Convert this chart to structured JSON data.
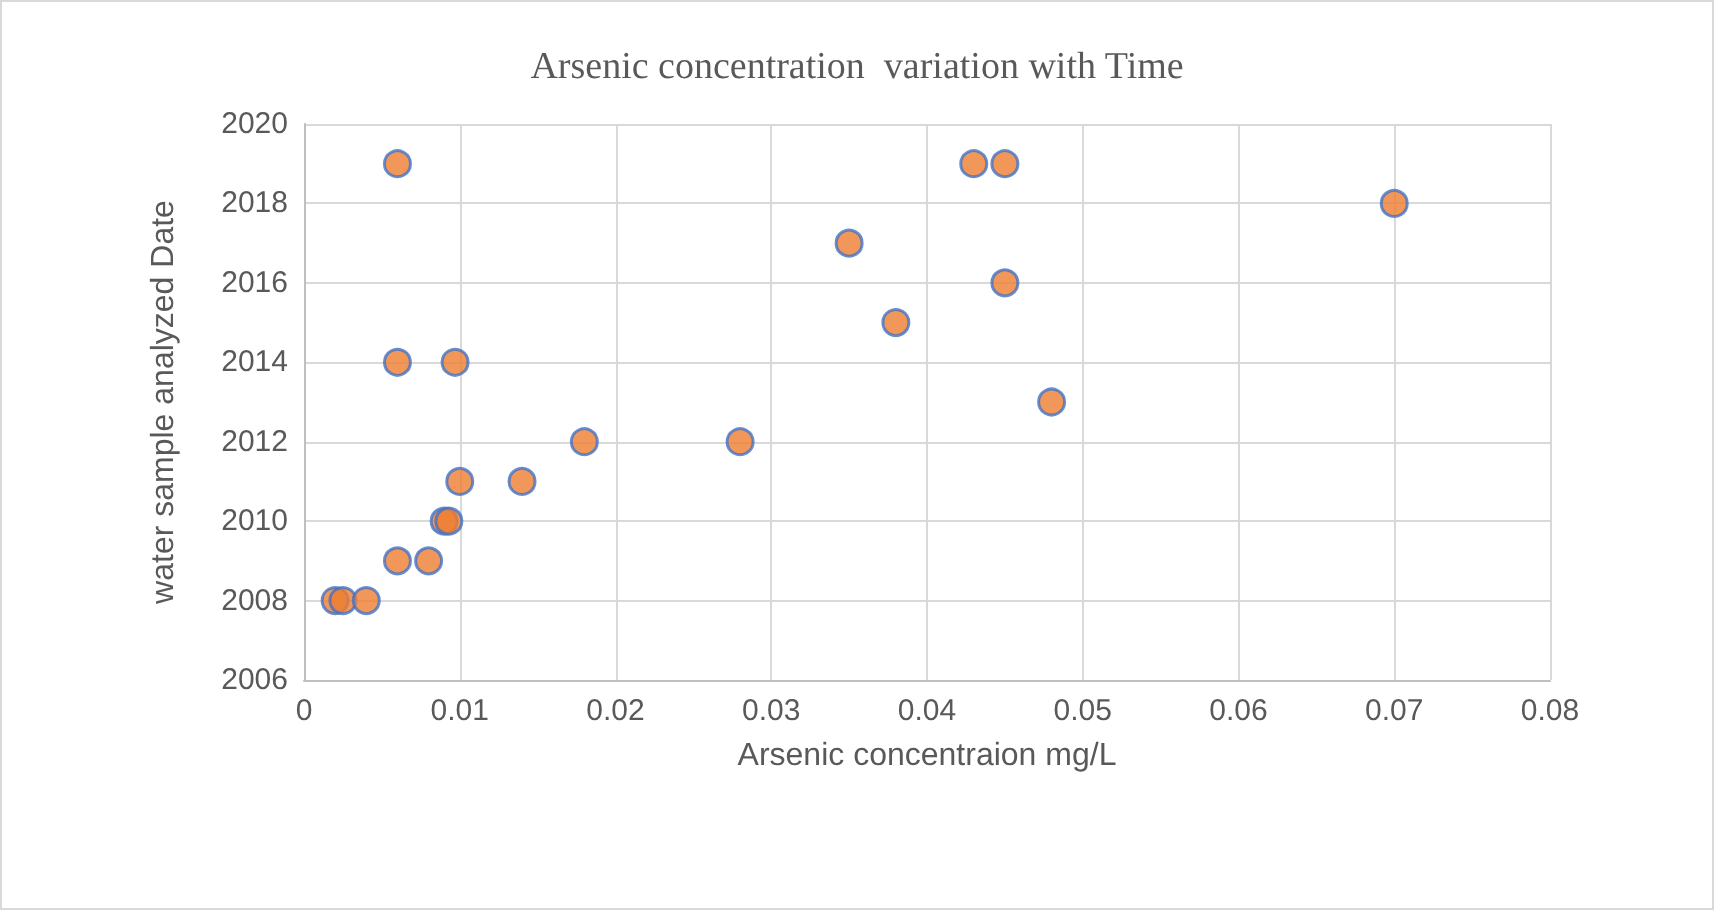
{
  "chart_data": {
    "type": "scatter",
    "title": "Arsenic concentration  variation with Time",
    "xlabel": "Arsenic concentraion mg/L",
    "ylabel": "water sample analyzed Date",
    "series": [
      {
        "color": "#ed7d31",
        "x": [
          0.006,
          0.043,
          0.045,
          0.07,
          0.035,
          0.045,
          0.038,
          0.006,
          0.0097,
          0.048,
          0.018,
          0.028,
          0.01,
          0.014,
          0.009,
          0.0093,
          0.006,
          0.008,
          0.002,
          0.0025,
          0.004
        ],
        "values": [
          2019,
          2019,
          2019,
          2018,
          2017,
          2016,
          2015,
          2014,
          2014,
          2013,
          2012,
          2012,
          2011,
          2011,
          2010,
          2010,
          2009,
          2009,
          2008,
          2008,
          2008
        ]
      }
    ],
    "xlim": [
      0,
      0.08
    ],
    "xticks": [
      0,
      0.01,
      0.02,
      0.03,
      0.04,
      0.05,
      0.06,
      0.07,
      0.08
    ],
    "ylim": [
      2006,
      2020
    ],
    "yticks": [
      2006,
      2008,
      2010,
      2012,
      2014,
      2016,
      2018,
      2020
    ],
    "grid": true,
    "marker": "circle"
  }
}
